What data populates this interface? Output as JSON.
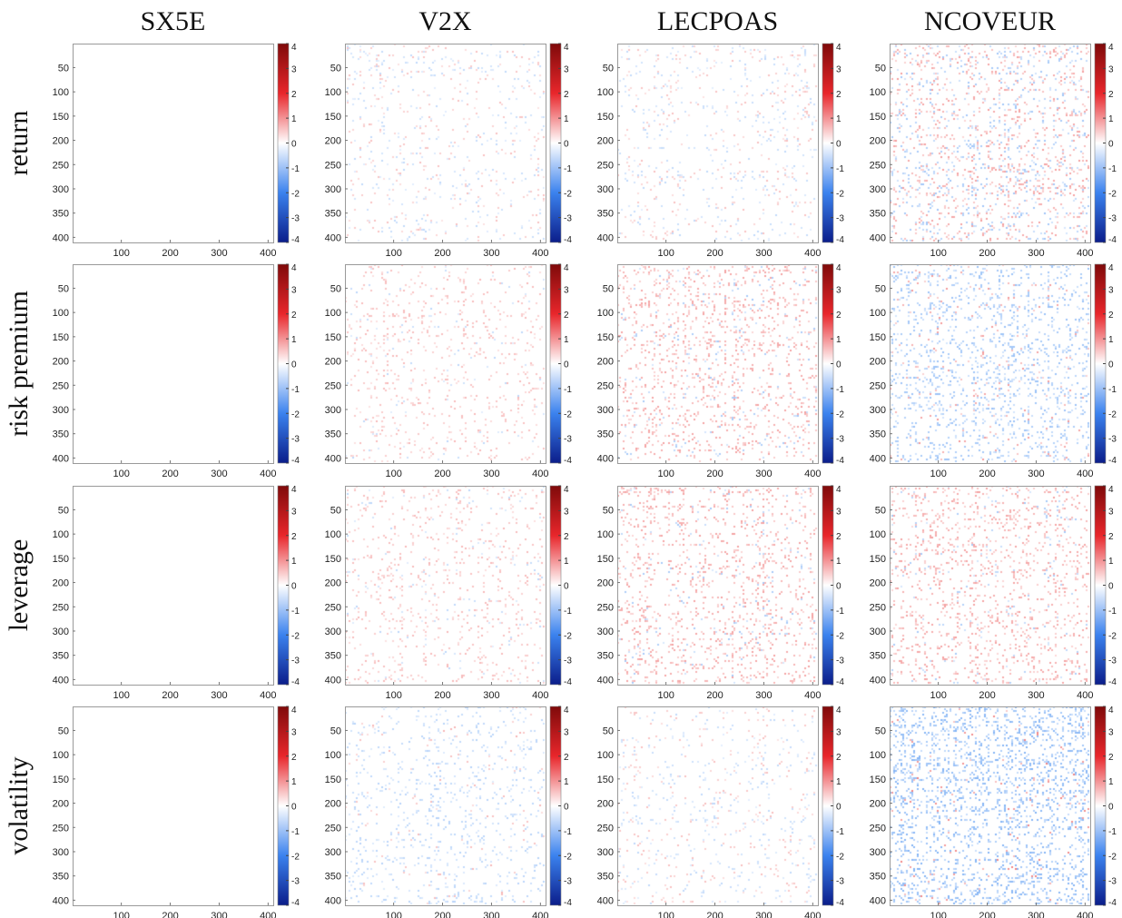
{
  "chart_data": {
    "type": "heatmap",
    "columns": [
      "SX5E",
      "V2X",
      "LECPOAS",
      "NCOVEUR"
    ],
    "rows": [
      "return",
      "risk premium",
      "leverage",
      "volatility"
    ],
    "matrix_size": 410,
    "axis_ticks": [
      100,
      200,
      300,
      400
    ],
    "y_axis_ticks": [
      50,
      100,
      150,
      200,
      250,
      300,
      350,
      400
    ],
    "colorbar": {
      "range": [
        -4,
        4
      ],
      "ticks": [
        4,
        3,
        2,
        1,
        0,
        -1,
        -2,
        -3,
        -4
      ],
      "colors": {
        "negative_end": "#0b1d8a",
        "mid_negative": "#3b82ee",
        "zero": "#ffffff",
        "mid_positive": "#e8262b",
        "positive_end": "#7f0a0a"
      }
    },
    "panel_pattern": [
      [
        "empty",
        "faint-mixed",
        "faint-mixed",
        "mixed"
      ],
      [
        "empty",
        "faint-positive",
        "positive",
        "negative"
      ],
      [
        "empty",
        "faint-positive",
        "positive",
        "positive"
      ],
      [
        "empty",
        "faint-negative",
        "faint-mixed",
        "strong-negative"
      ]
    ]
  }
}
